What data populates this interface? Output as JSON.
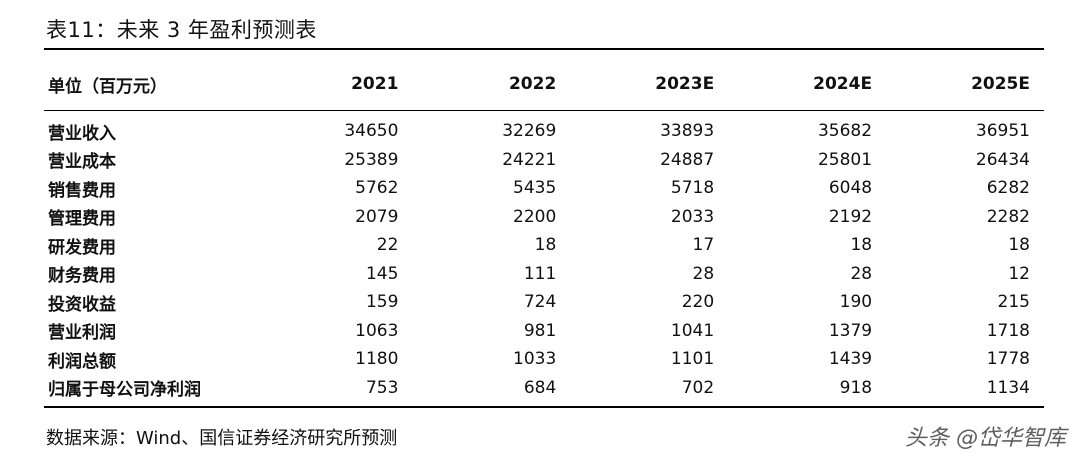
{
  "title": "表11：未来 3 年盈利预测表",
  "header": {
    "label": "单位（百万元）",
    "years": [
      "2021",
      "2022",
      "2023E",
      "2024E",
      "2025E"
    ]
  },
  "rows": [
    {
      "label": "营业收入",
      "values": [
        "34650",
        "32269",
        "33893",
        "35682",
        "36951"
      ]
    },
    {
      "label": "营业成本",
      "values": [
        "25389",
        "24221",
        "24887",
        "25801",
        "26434"
      ]
    },
    {
      "label": "销售费用",
      "values": [
        "5762",
        "5435",
        "5718",
        "6048",
        "6282"
      ]
    },
    {
      "label": "管理费用",
      "values": [
        "2079",
        "2200",
        "2033",
        "2192",
        "2282"
      ]
    },
    {
      "label": "研发费用",
      "values": [
        "22",
        "18",
        "17",
        "18",
        "18"
      ]
    },
    {
      "label": "财务费用",
      "values": [
        "145",
        "111",
        "28",
        "28",
        "12"
      ]
    },
    {
      "label": "投资收益",
      "values": [
        "159",
        "724",
        "220",
        "190",
        "215"
      ]
    },
    {
      "label": "营业利润",
      "values": [
        "1063",
        "981",
        "1041",
        "1379",
        "1718"
      ]
    },
    {
      "label": "利润总额",
      "values": [
        "1180",
        "1033",
        "1101",
        "1439",
        "1778"
      ]
    },
    {
      "label": "归属于母公司净利润",
      "values": [
        "753",
        "684",
        "702",
        "918",
        "1134"
      ]
    }
  ],
  "source": "数据来源：Wind、国信证券经济研究所预测",
  "watermark": "头条 @岱华智库"
}
